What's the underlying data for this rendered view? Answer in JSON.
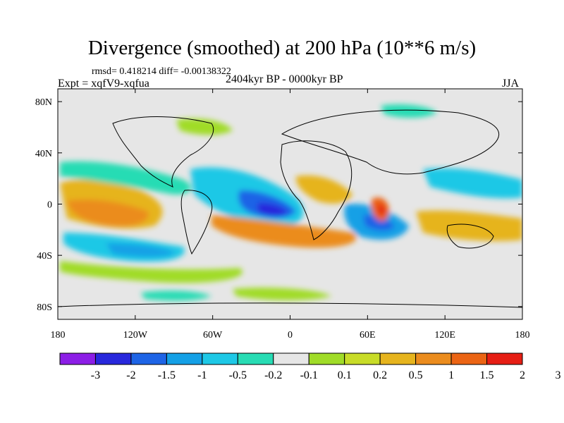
{
  "map": {
    "title": "Divergence (smoothed) at 200 hPa (10**6 m/s)",
    "stats": "rmsd= 0.418214 diff= -0.00138322",
    "experiment": "Expt = xqfV9-xqfua",
    "period": "2404kyr BP - 0000kyr BP",
    "season": "JJA",
    "projection": "cylindrical equidistant",
    "lon_range": [
      -180,
      180
    ],
    "lat_range": [
      -90,
      90
    ],
    "lon_ticks": [
      {
        "value": -180,
        "label": "180"
      },
      {
        "value": -120,
        "label": "120W"
      },
      {
        "value": -60,
        "label": "60W"
      },
      {
        "value": 0,
        "label": "0"
      },
      {
        "value": 60,
        "label": "60E"
      },
      {
        "value": 120,
        "label": "120E"
      },
      {
        "value": 180,
        "label": "180"
      }
    ],
    "lat_ticks": [
      {
        "value": 80,
        "label": "80N"
      },
      {
        "value": 40,
        "label": "40N"
      },
      {
        "value": 0,
        "label": "0"
      },
      {
        "value": -40,
        "label": "40S"
      },
      {
        "value": -80,
        "label": "80S"
      }
    ]
  },
  "colorbar": {
    "colors": [
      "#8c1ee6",
      "#2828dc",
      "#1e64e6",
      "#14a0e6",
      "#1ec8e6",
      "#28dcb4",
      "#e6e6e6",
      "#a0dc28",
      "#c8dc28",
      "#e6b41e",
      "#eb8c1e",
      "#eb6414",
      "#e61e14"
    ],
    "labels": [
      "-3",
      "-2",
      "-1.5",
      "-1",
      "-0.5",
      "-0.2",
      "-0.1",
      "0.1",
      "0.2",
      "0.5",
      "1",
      "1.5",
      "2",
      "3"
    ]
  },
  "field_features": [
    {
      "name": "strong-negative-atlantic",
      "lon": -12,
      "lat": 2,
      "value": -2.5
    },
    {
      "name": "strong-positive-arabian-sea",
      "lon": 70,
      "lat": 0,
      "value": 2.0
    },
    {
      "name": "negative-indian-ocean",
      "lon": 60,
      "lat": -12,
      "value": -1.5
    },
    {
      "name": "positive-tropical-atlantic-band",
      "lon": 10,
      "lat": -15,
      "value": 0.8
    },
    {
      "name": "positive-east-pacific",
      "lon": -110,
      "lat": 0,
      "value": 0.7
    },
    {
      "name": "negative-south-pacific",
      "lon": -100,
      "lat": -35,
      "value": -0.4
    },
    {
      "name": "positive-west-pacific",
      "lon": 150,
      "lat": -10,
      "value": 0.6
    }
  ]
}
